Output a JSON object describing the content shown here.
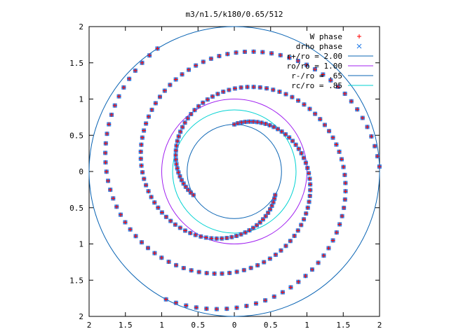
{
  "chart_data": {
    "type": "scatter",
    "title": "m3/n1.5/k180/0.65/512",
    "xlabel": "",
    "ylabel": "",
    "xlim": [
      -2,
      2
    ],
    "ylim": [
      -2,
      2
    ],
    "x_ticks": [
      -2,
      -1.5,
      -1,
      -0.5,
      0,
      0.5,
      1,
      1.5,
      2
    ],
    "x_tick_labels": [
      "2",
      "1.5",
      "1",
      "0.5",
      "0",
      "0.5",
      "1",
      "1.5",
      "2"
    ],
    "y_ticks": [
      2,
      1.5,
      1,
      0.5,
      0,
      -0.5,
      -1,
      -1.5,
      -2
    ],
    "y_tick_labels": [
      "2",
      "1.5",
      "1",
      "0.5",
      "0",
      "0.5",
      "1",
      "1.5",
      "2"
    ],
    "grid": false,
    "legend_position": "top-right",
    "colors": {
      "w_phase": "#ff0000",
      "drho_phase": "#1e78e6",
      "purple": "#a020f0",
      "blue": "#0a64b4",
      "cyan": "#00d2d2",
      "axes": "#000000"
    },
    "legend": [
      {
        "label": "W phase",
        "marker": "plus",
        "color": "#ff0000"
      },
      {
        "label": "drho phase",
        "marker": "cross",
        "color": "#1e78e6"
      },
      {
        "label": "r+/ro = 2.00",
        "marker": "line",
        "color": "#0a64b4"
      },
      {
        "label": "ro/ro = 1.00",
        "marker": "line",
        "color": "#a020f0"
      },
      {
        "label": "r-/ro = .65",
        "marker": "line",
        "color": "#0a64b4"
      },
      {
        "label": "rc/ro = .85",
        "marker": "line",
        "color": "#00d2d2"
      }
    ],
    "circles": [
      {
        "name": "r+/ro",
        "radius": 2.0,
        "color": "#0a64b4"
      },
      {
        "name": "ro/ro",
        "radius": 1.0,
        "color": "#a020f0"
      },
      {
        "name": "r-/ro",
        "radius": 0.65,
        "color": "#0a64b4"
      },
      {
        "name": "rc/ro",
        "radius": 0.85,
        "color": "#00d2d2"
      }
    ],
    "spiral_arms": {
      "description": "three-armed phase spiral (m=3), points overlap for W phase and drho phase",
      "arms": 3,
      "arm_start_angles_deg": [
        90,
        210,
        330
      ],
      "r_start": 0.65,
      "r_end": 2.0,
      "phase_per_unit_r": 1.35,
      "points_per_arm": 80
    }
  }
}
